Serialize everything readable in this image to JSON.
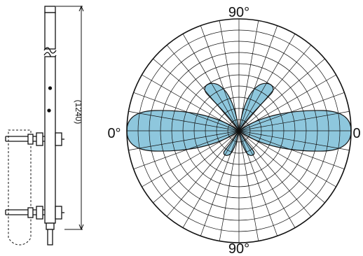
{
  "antenna": {
    "length_label": "(1240)"
  },
  "pattern": {
    "labels": {
      "top": "90°",
      "bottom": "90°",
      "left": "0°",
      "right": "0"
    },
    "grid": {
      "rings": 10,
      "spokes": 36
    },
    "colors": {
      "lobe_fill": "#8ec7dd",
      "lobe_stroke": "#111111",
      "grid": "#111111"
    }
  }
}
